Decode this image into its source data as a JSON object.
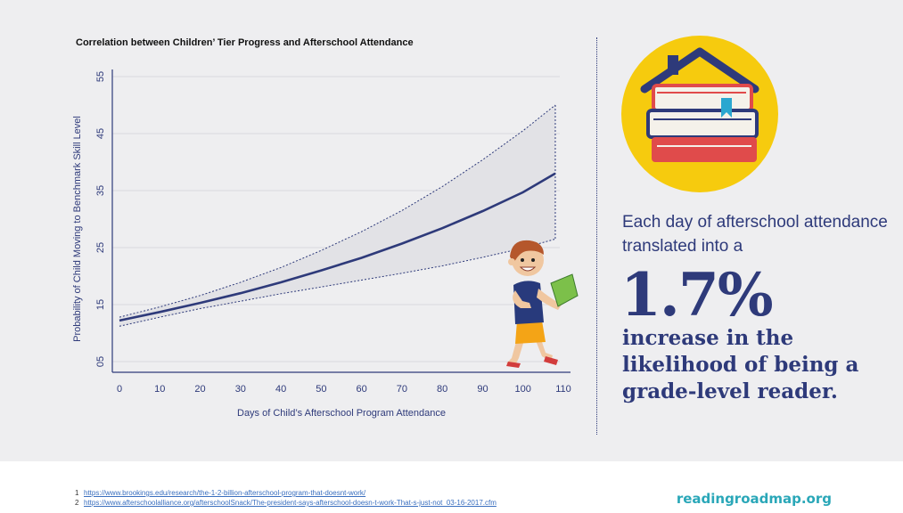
{
  "chart_data": {
    "type": "line",
    "title": "Correlation between Children’ Tier Progress and Afterschool Attendance",
    "xlabel": "Days of Child’s Afterschool Program Attendance",
    "ylabel": "Probability of Child Moving to Benchmark Skill Level",
    "x_ticks": [
      "0",
      "10",
      "20",
      "30",
      "40",
      "50",
      "60",
      "70",
      "80",
      "90",
      "100",
      "110"
    ],
    "y_ticks": [
      "05",
      "15",
      "25",
      "35",
      "45",
      "55"
    ],
    "xlim": [
      0,
      110
    ],
    "ylim": [
      5,
      55
    ],
    "grid": true,
    "x": [
      0,
      10,
      20,
      30,
      40,
      50,
      60,
      70,
      80,
      90,
      100,
      108
    ],
    "series": [
      {
        "values": [
          12.2,
          13.7,
          15.3,
          17.0,
          18.9,
          21.0,
          23.2,
          25.7,
          28.4,
          31.4,
          34.7,
          38.0
        ]
      }
    ],
    "upper_band": [
      12.8,
      14.6,
      16.6,
      18.9,
      21.5,
      24.5,
      27.8,
      31.5,
      35.7,
      40.4,
      45.5,
      50.0
    ],
    "lower_band": [
      11.2,
      12.8,
      14.3,
      15.6,
      16.9,
      18.1,
      19.3,
      20.5,
      21.8,
      23.3,
      24.9,
      26.5
    ],
    "colors": {
      "line": "#2e3a7a",
      "band": "#e2e2e6",
      "axis": "#2e3a7a"
    }
  },
  "callout": {
    "intro": "Each day of afterschool attendance translated into a",
    "stat": "1.7%",
    "description": "increase in the likelihood of being a grade-level reader."
  },
  "footnotes": [
    {
      "num": "1",
      "url": "https://www.brookings.edu/research/the-1-2-billion-afterschool-program-that-doesnt-work/"
    },
    {
      "num": "2",
      "url": "https://www.afterschoolalliance.org/afterschoolSnack/The-president-says-afterschool-doesn-t-work-That-s-just-not_03-16-2017.cfm"
    }
  ],
  "brand": "readingroadmap.org",
  "icons": [
    "house-books-icon",
    "child-reading-illustration"
  ]
}
